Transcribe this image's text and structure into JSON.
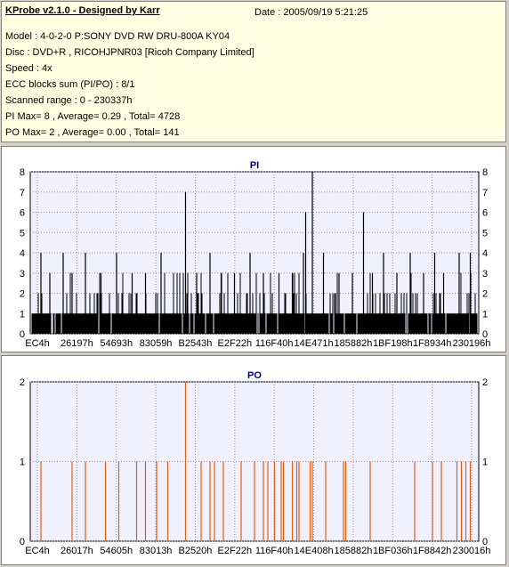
{
  "header": {
    "title": "KProbe v2.1.0 - Designed by Karr",
    "date": "Date : 2005/09/19 5:21:25",
    "lines": [
      "Model : 4-0-2-0 P:SONY    DVD RW DRU-800A  KY04",
      "Disc : DVD+R , RICOHJPNR03 [Ricoh Company Limited]",
      "Speed : 4x",
      "ECC blocks sum (PI/PO) : 8/1",
      "Scanned range : 0 - 230337h",
      "PI Max= 8 , Average= 0.29 , Total= 4728",
      "PO Max= 2 , Average= 0.00 , Total= 141"
    ]
  },
  "colors": {
    "pi": "#000000",
    "po": "#e06010",
    "plot_bg": "#f0f0ff",
    "title_text": "#000080"
  },
  "chart_data": [
    {
      "type": "bar",
      "title": "PI",
      "ylim": [
        0,
        8
      ],
      "yticks": [
        0,
        1,
        2,
        3,
        4,
        5,
        6,
        7,
        8
      ],
      "xticks": [
        "EC4h",
        "26197h",
        "54693h",
        "83059h",
        "B2543h",
        "E2F22h",
        "116F40h",
        "14E471h",
        "185882h",
        "1BF198h",
        "1F8934h",
        "230196h"
      ],
      "baseline_level": 1,
      "peaks": [
        {
          "x": 0.02,
          "v": 4
        },
        {
          "x": 0.04,
          "v": 3
        },
        {
          "x": 0.07,
          "v": 4
        },
        {
          "x": 0.09,
          "v": 3
        },
        {
          "x": 0.12,
          "v": 4
        },
        {
          "x": 0.155,
          "v": 3
        },
        {
          "x": 0.19,
          "v": 4
        },
        {
          "x": 0.225,
          "v": 3
        },
        {
          "x": 0.255,
          "v": 3
        },
        {
          "x": 0.29,
          "v": 4
        },
        {
          "x": 0.345,
          "v": 7
        },
        {
          "x": 0.37,
          "v": 3
        },
        {
          "x": 0.4,
          "v": 4
        },
        {
          "x": 0.425,
          "v": 3
        },
        {
          "x": 0.455,
          "v": 3
        },
        {
          "x": 0.49,
          "v": 4
        },
        {
          "x": 0.52,
          "v": 3
        },
        {
          "x": 0.555,
          "v": 3
        },
        {
          "x": 0.585,
          "v": 3
        },
        {
          "x": 0.61,
          "v": 4
        },
        {
          "x": 0.615,
          "v": 6
        },
        {
          "x": 0.63,
          "v": 8
        },
        {
          "x": 0.655,
          "v": 4
        },
        {
          "x": 0.69,
          "v": 3
        },
        {
          "x": 0.72,
          "v": 3
        },
        {
          "x": 0.745,
          "v": 6
        },
        {
          "x": 0.765,
          "v": 3
        },
        {
          "x": 0.79,
          "v": 4
        },
        {
          "x": 0.82,
          "v": 3
        },
        {
          "x": 0.85,
          "v": 4
        },
        {
          "x": 0.88,
          "v": 3
        },
        {
          "x": 0.905,
          "v": 4
        },
        {
          "x": 0.925,
          "v": 3
        },
        {
          "x": 0.96,
          "v": 4
        },
        {
          "x": 0.985,
          "v": 4
        }
      ]
    },
    {
      "type": "bar",
      "title": "PO",
      "ylim": [
        0,
        2
      ],
      "yticks": [
        0,
        1,
        2
      ],
      "xticks": [
        "EC4h",
        "26017h",
        "54605h",
        "83013h",
        "B2520h",
        "E2F22h",
        "116F40h",
        "14E408h",
        "185882h",
        "1BF036h",
        "1F8842h",
        "230016h"
      ],
      "peaks": [
        {
          "x": 0.02,
          "v": 1
        },
        {
          "x": 0.09,
          "v": 1
        },
        {
          "x": 0.12,
          "v": 1
        },
        {
          "x": 0.165,
          "v": 1
        },
        {
          "x": 0.195,
          "v": 1
        },
        {
          "x": 0.235,
          "v": 1
        },
        {
          "x": 0.255,
          "v": 1
        },
        {
          "x": 0.28,
          "v": 1
        },
        {
          "x": 0.305,
          "v": 1
        },
        {
          "x": 0.345,
          "v": 2
        },
        {
          "x": 0.38,
          "v": 1
        },
        {
          "x": 0.4,
          "v": 1
        },
        {
          "x": 0.41,
          "v": 1
        },
        {
          "x": 0.43,
          "v": 1
        },
        {
          "x": 0.47,
          "v": 1
        },
        {
          "x": 0.5,
          "v": 1
        },
        {
          "x": 0.52,
          "v": 1
        },
        {
          "x": 0.53,
          "v": 1
        },
        {
          "x": 0.545,
          "v": 1
        },
        {
          "x": 0.56,
          "v": 1
        },
        {
          "x": 0.565,
          "v": 1
        },
        {
          "x": 0.585,
          "v": 1
        },
        {
          "x": 0.595,
          "v": 1
        },
        {
          "x": 0.6,
          "v": 1
        },
        {
          "x": 0.625,
          "v": 1
        },
        {
          "x": 0.63,
          "v": 1
        },
        {
          "x": 0.66,
          "v": 1
        },
        {
          "x": 0.7,
          "v": 1
        },
        {
          "x": 0.705,
          "v": 1
        },
        {
          "x": 0.76,
          "v": 1
        },
        {
          "x": 0.86,
          "v": 1
        },
        {
          "x": 0.9,
          "v": 1
        },
        {
          "x": 0.92,
          "v": 1
        },
        {
          "x": 0.955,
          "v": 1
        },
        {
          "x": 0.965,
          "v": 1
        },
        {
          "x": 0.975,
          "v": 1
        },
        {
          "x": 0.985,
          "v": 1
        }
      ]
    }
  ]
}
